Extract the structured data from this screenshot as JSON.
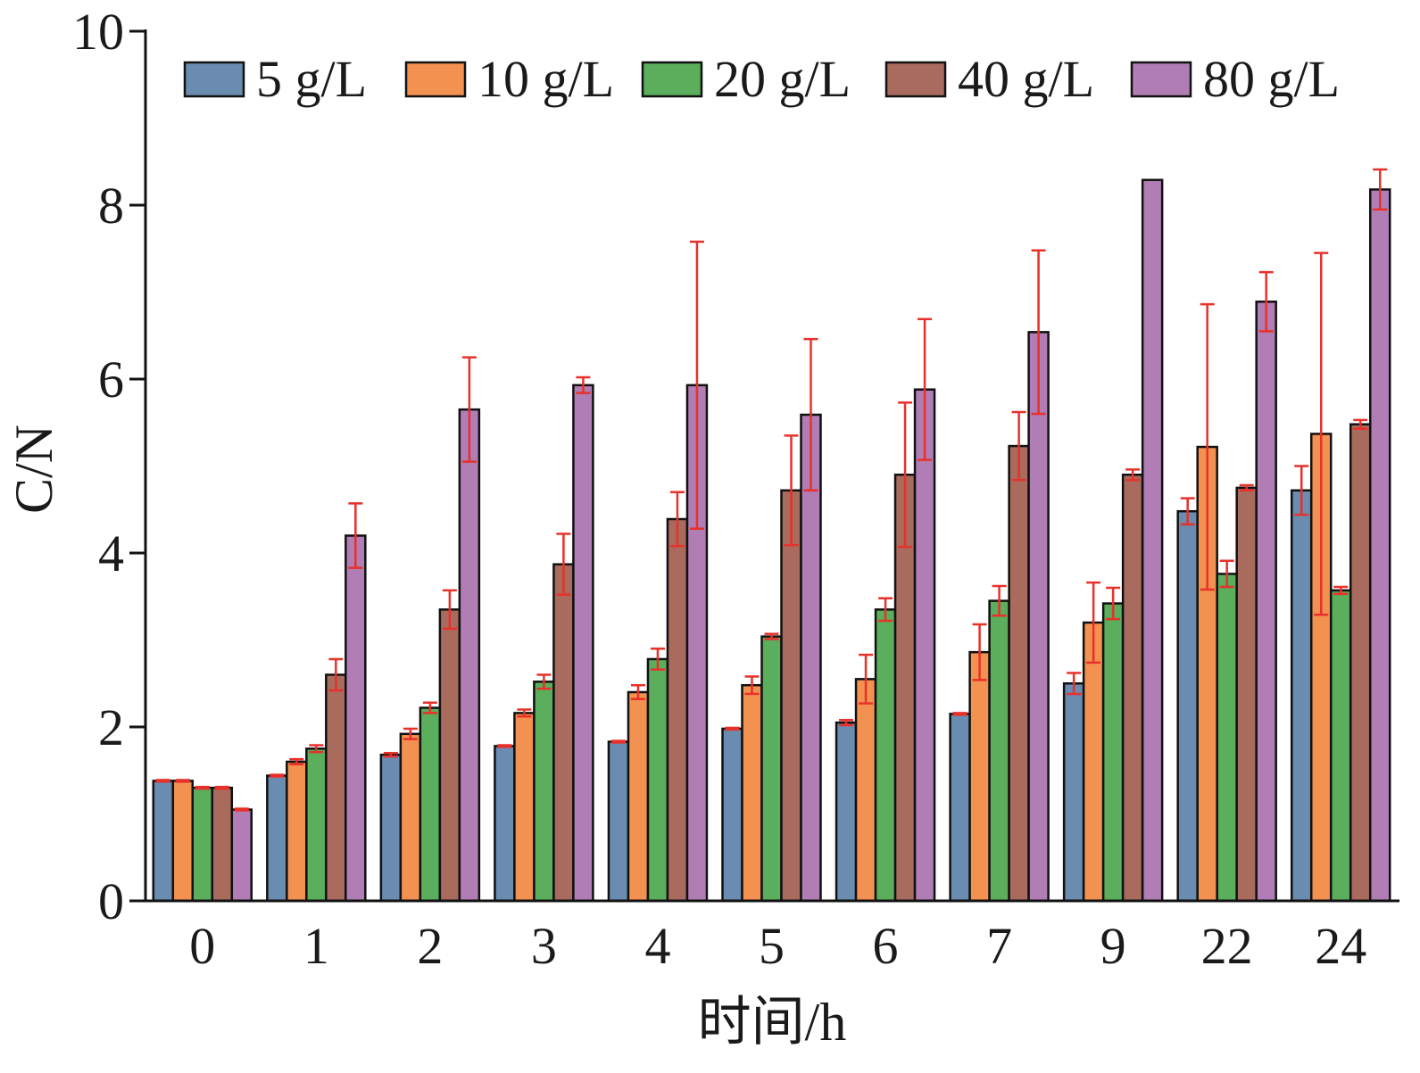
{
  "chart_data": {
    "type": "bar",
    "xlabel": "时间/h",
    "ylabel": "C/N",
    "ylim": [
      0,
      10
    ],
    "yticks": [
      0,
      2,
      4,
      6,
      8,
      10
    ],
    "categories": [
      "0",
      "1",
      "2",
      "3",
      "4",
      "5",
      "6",
      "7",
      "9",
      "22",
      "24"
    ],
    "legend_position": "top",
    "error_bar_color": "#e8312a",
    "series": [
      {
        "name": "5 g/L",
        "color": "#6a8cb0",
        "values": [
          1.38,
          1.44,
          1.68,
          1.78,
          1.83,
          1.98,
          2.05,
          2.15,
          2.5,
          4.48,
          4.72
        ],
        "errors": [
          0.01,
          0.01,
          0.02,
          0.01,
          0.01,
          0.01,
          0.03,
          0.01,
          0.12,
          0.15,
          0.28
        ]
      },
      {
        "name": "10 g/L",
        "color": "#f39150",
        "values": [
          1.38,
          1.6,
          1.92,
          2.16,
          2.4,
          2.48,
          2.55,
          2.86,
          3.2,
          5.22,
          5.37
        ],
        "errors": [
          0.01,
          0.03,
          0.06,
          0.04,
          0.08,
          0.1,
          0.28,
          0.32,
          0.46,
          1.64,
          2.08
        ]
      },
      {
        "name": "20 g/L",
        "color": "#5aae5c",
        "values": [
          1.3,
          1.75,
          2.22,
          2.52,
          2.78,
          3.04,
          3.35,
          3.45,
          3.42,
          3.76,
          3.57
        ],
        "errors": [
          0.01,
          0.04,
          0.06,
          0.08,
          0.12,
          0.03,
          0.13,
          0.17,
          0.18,
          0.15,
          0.04
        ]
      },
      {
        "name": "40 g/L",
        "color": "#a86b5e",
        "values": [
          1.3,
          2.6,
          3.35,
          3.87,
          4.39,
          4.72,
          4.9,
          5.23,
          4.9,
          4.75,
          5.48
        ],
        "errors": [
          0.01,
          0.18,
          0.22,
          0.35,
          0.31,
          0.63,
          0.83,
          0.39,
          0.06,
          0.03,
          0.05
        ]
      },
      {
        "name": "80 g/L",
        "color": "#b07db4",
        "values": [
          1.05,
          4.2,
          5.65,
          5.93,
          5.93,
          5.59,
          5.88,
          6.54,
          8.29,
          6.89,
          8.18
        ],
        "errors": [
          0.01,
          0.37,
          0.6,
          0.09,
          1.65,
          0.87,
          0.81,
          0.94,
          0.0,
          0.34,
          0.23
        ]
      }
    ]
  }
}
